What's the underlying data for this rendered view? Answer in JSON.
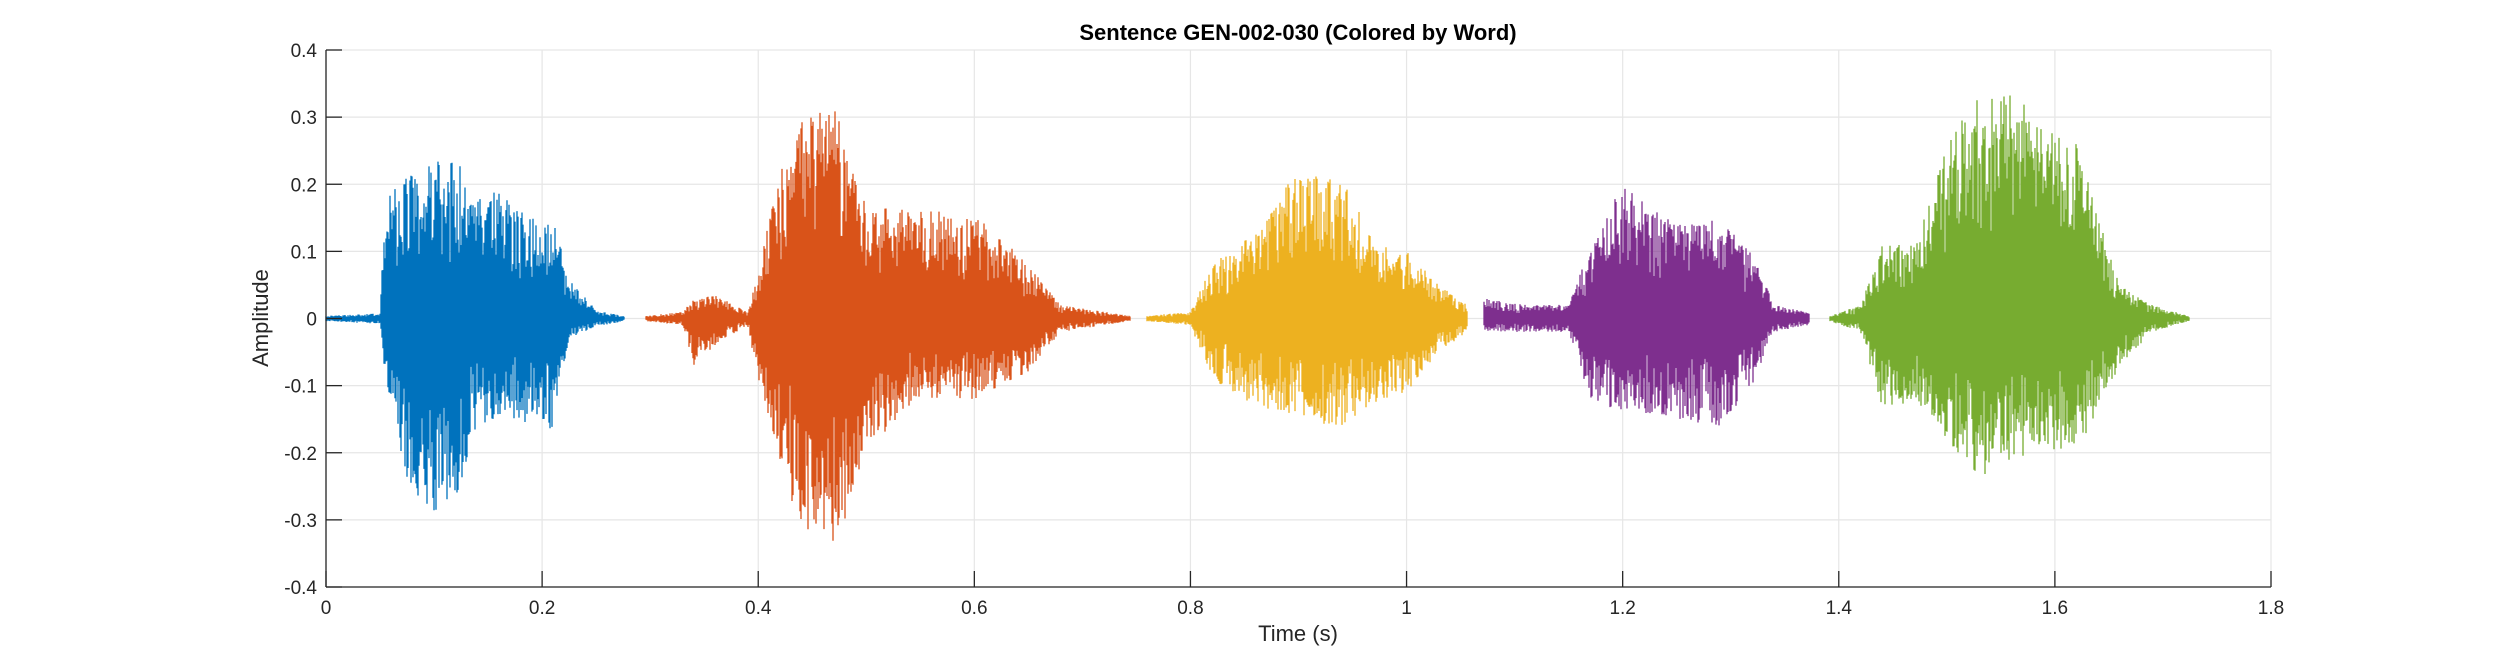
{
  "chart_data": {
    "type": "line",
    "title": "Sentence GEN-002-030 (Colored by Word)",
    "xlabel": "Time (s)",
    "ylabel": "Amplitude",
    "xlim": [
      0,
      1.8
    ],
    "ylim": [
      -0.4,
      0.4
    ],
    "xticks": [
      0,
      0.2,
      0.4,
      0.6,
      0.8,
      1,
      1.2,
      1.4,
      1.6,
      1.8
    ],
    "xtick_labels": [
      "0",
      "0.2",
      "0.4",
      "0.6",
      "0.8",
      "1",
      "1.2",
      "1.4",
      "1.6",
      "1.8"
    ],
    "yticks": [
      0.4,
      0.3,
      0.2,
      0.1,
      0,
      -0.1,
      -0.2,
      -0.3,
      -0.4
    ],
    "ytick_labels": [
      "0.4",
      "0.3",
      "0.2",
      "0.1",
      "0",
      "-0.1",
      "-0.2",
      "-0.3",
      "-0.4"
    ],
    "grid": true,
    "series": [
      {
        "color": "#0072BD",
        "time_range": [
          0.0,
          0.276
        ],
        "envelope": [
          {
            "t": 0.0,
            "max": 0.004,
            "min": -0.004
          },
          {
            "t": 0.05,
            "max": 0.008,
            "min": -0.008
          },
          {
            "t": 0.055,
            "max": 0.19,
            "min": -0.09
          },
          {
            "t": 0.075,
            "max": 0.21,
            "min": -0.26
          },
          {
            "t": 0.1,
            "max": 0.235,
            "min": -0.29
          },
          {
            "t": 0.12,
            "max": 0.235,
            "min": -0.27
          },
          {
            "t": 0.14,
            "max": 0.2,
            "min": -0.16
          },
          {
            "t": 0.17,
            "max": 0.18,
            "min": -0.15
          },
          {
            "t": 0.2,
            "max": 0.14,
            "min": -0.16
          },
          {
            "t": 0.21,
            "max": 0.15,
            "min": -0.17
          },
          {
            "t": 0.225,
            "max": 0.06,
            "min": -0.03
          },
          {
            "t": 0.25,
            "max": 0.012,
            "min": -0.012
          },
          {
            "t": 0.276,
            "max": 0.004,
            "min": -0.004
          }
        ]
      },
      {
        "color": "#D95319",
        "time_range": [
          0.296,
          0.744
        ],
        "envelope": [
          {
            "t": 0.296,
            "max": 0.004,
            "min": -0.004
          },
          {
            "t": 0.33,
            "max": 0.01,
            "min": -0.01
          },
          {
            "t": 0.34,
            "max": 0.03,
            "min": -0.07
          },
          {
            "t": 0.36,
            "max": 0.035,
            "min": -0.04
          },
          {
            "t": 0.39,
            "max": 0.01,
            "min": -0.01
          },
          {
            "t": 0.4,
            "max": 0.07,
            "min": -0.09
          },
          {
            "t": 0.42,
            "max": 0.22,
            "min": -0.21
          },
          {
            "t": 0.44,
            "max": 0.3,
            "min": -0.32
          },
          {
            "t": 0.47,
            "max": 0.32,
            "min": -0.35
          },
          {
            "t": 0.5,
            "max": 0.17,
            "min": -0.2
          },
          {
            "t": 0.55,
            "max": 0.16,
            "min": -0.12
          },
          {
            "t": 0.6,
            "max": 0.16,
            "min": -0.12
          },
          {
            "t": 0.65,
            "max": 0.08,
            "min": -0.08
          },
          {
            "t": 0.68,
            "max": 0.02,
            "min": -0.02
          },
          {
            "t": 0.744,
            "max": 0.004,
            "min": -0.004
          }
        ]
      },
      {
        "color": "#EDB120",
        "time_range": [
          0.76,
          1.056
        ],
        "envelope": [
          {
            "t": 0.76,
            "max": 0.004,
            "min": -0.004
          },
          {
            "t": 0.8,
            "max": 0.01,
            "min": -0.01
          },
          {
            "t": 0.82,
            "max": 0.08,
            "min": -0.09
          },
          {
            "t": 0.86,
            "max": 0.13,
            "min": -0.13
          },
          {
            "t": 0.9,
            "max": 0.225,
            "min": -0.16
          },
          {
            "t": 0.94,
            "max": 0.215,
            "min": -0.16
          },
          {
            "t": 0.97,
            "max": 0.11,
            "min": -0.13
          },
          {
            "t": 1.0,
            "max": 0.1,
            "min": -0.11
          },
          {
            "t": 1.03,
            "max": 0.05,
            "min": -0.05
          },
          {
            "t": 1.056,
            "max": 0.02,
            "min": -0.02
          }
        ]
      },
      {
        "color": "#7E2F8E",
        "time_range": [
          1.072,
          1.372
        ],
        "envelope": [
          {
            "t": 1.072,
            "max": 0.03,
            "min": -0.02
          },
          {
            "t": 1.1,
            "max": 0.022,
            "min": -0.02
          },
          {
            "t": 1.15,
            "max": 0.02,
            "min": -0.02
          },
          {
            "t": 1.17,
            "max": 0.11,
            "min": -0.12
          },
          {
            "t": 1.2,
            "max": 0.2,
            "min": -0.14
          },
          {
            "t": 1.25,
            "max": 0.14,
            "min": -0.15
          },
          {
            "t": 1.29,
            "max": 0.15,
            "min": -0.16
          },
          {
            "t": 1.32,
            "max": 0.1,
            "min": -0.1
          },
          {
            "t": 1.34,
            "max": 0.02,
            "min": -0.02
          },
          {
            "t": 1.372,
            "max": 0.01,
            "min": -0.01
          }
        ]
      },
      {
        "color": "#77AC30",
        "time_range": [
          1.392,
          1.724
        ],
        "envelope": [
          {
            "t": 1.392,
            "max": 0.004,
            "min": -0.004
          },
          {
            "t": 1.42,
            "max": 0.02,
            "min": -0.02
          },
          {
            "t": 1.44,
            "max": 0.11,
            "min": -0.13
          },
          {
            "t": 1.47,
            "max": 0.11,
            "min": -0.13
          },
          {
            "t": 1.5,
            "max": 0.26,
            "min": -0.18
          },
          {
            "t": 1.53,
            "max": 0.34,
            "min": -0.24
          },
          {
            "t": 1.58,
            "max": 0.33,
            "min": -0.2
          },
          {
            "t": 1.62,
            "max": 0.26,
            "min": -0.2
          },
          {
            "t": 1.66,
            "max": 0.05,
            "min": -0.07
          },
          {
            "t": 1.69,
            "max": 0.02,
            "min": -0.02
          },
          {
            "t": 1.724,
            "max": 0.004,
            "min": -0.004
          }
        ]
      }
    ]
  }
}
